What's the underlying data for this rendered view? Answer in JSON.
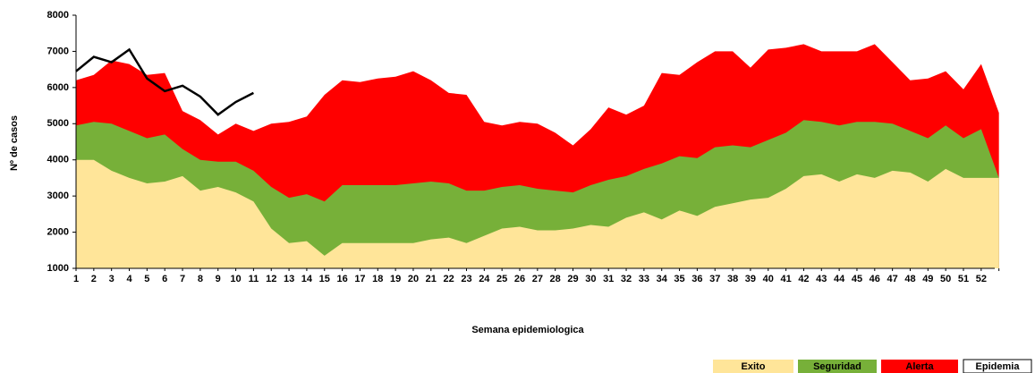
{
  "chart_data": {
    "type": "area",
    "xlabel": "Semana epidemiologica",
    "ylabel": "Nº de casos",
    "categories": [
      1,
      2,
      3,
      4,
      5,
      6,
      7,
      8,
      9,
      10,
      11,
      12,
      13,
      14,
      15,
      16,
      17,
      18,
      19,
      20,
      21,
      22,
      23,
      24,
      25,
      26,
      27,
      28,
      29,
      30,
      31,
      32,
      33,
      34,
      35,
      36,
      37,
      38,
      39,
      40,
      41,
      42,
      43,
      44,
      45,
      46,
      47,
      48,
      49,
      50,
      51,
      52,
      null
    ],
    "ylim": [
      1000,
      8000
    ],
    "yticks": [
      1000,
      2000,
      3000,
      4000,
      5000,
      6000,
      7000,
      8000
    ],
    "grid": false,
    "legend": "bottom-right",
    "series": [
      {
        "name": "Exito",
        "color": "#ffe599",
        "values": [
          4000,
          4000,
          3700,
          3500,
          3350,
          3400,
          3550,
          3150,
          3250,
          3100,
          2850,
          2100,
          1700,
          1750,
          1350,
          1700,
          1700,
          1700,
          1700,
          1700,
          1800,
          1850,
          1700,
          1900,
          2100,
          2150,
          2050,
          2050,
          2100,
          2200,
          2150,
          2400,
          2550,
          2350,
          2600,
          2450,
          2700,
          2800,
          2900,
          2950,
          3200,
          3550,
          3600,
          3400,
          3600,
          3500,
          3700,
          3650,
          3400,
          3750,
          3500,
          3500,
          3500
        ]
      },
      {
        "name": "Seguridad",
        "color": "#77b039",
        "values": [
          4950,
          5050,
          5000,
          4800,
          4600,
          4700,
          4300,
          4000,
          3950,
          3950,
          3700,
          3250,
          2950,
          3050,
          2850,
          3300,
          3300,
          3300,
          3300,
          3350,
          3400,
          3350,
          3150,
          3150,
          3250,
          3300,
          3200,
          3150,
          3100,
          3300,
          3450,
          3550,
          3750,
          3900,
          4100,
          4050,
          4350,
          4400,
          4350,
          4550,
          4750,
          5100,
          5050,
          4950,
          5050,
          5050,
          5000,
          4800,
          4600,
          4950,
          4600,
          4850,
          3500
        ]
      },
      {
        "name": "Alerta",
        "color": "#ff0000",
        "values": [
          6200,
          6350,
          6750,
          6650,
          6350,
          6400,
          5350,
          5100,
          4700,
          5000,
          4800,
          5000,
          5050,
          5200,
          5800,
          6200,
          6150,
          6250,
          6300,
          6450,
          6200,
          5850,
          5800,
          5050,
          4950,
          5050,
          5000,
          4750,
          4400,
          4850,
          5450,
          5250,
          5500,
          6400,
          6350,
          6700,
          7000,
          7000,
          6550,
          7050,
          7100,
          7200,
          7000,
          7000,
          7000,
          7200,
          6700,
          6200,
          6250,
          6450,
          5950,
          6650,
          5300
        ]
      },
      {
        "name": "Epidemia",
        "color": "#000000",
        "line": true,
        "values": [
          6450,
          6850,
          6700,
          7050,
          6250,
          5900,
          6050,
          5750,
          5250,
          5600,
          5850,
          null,
          null,
          null,
          null,
          null,
          null,
          null,
          null,
          null,
          null,
          null,
          null,
          null,
          null,
          null,
          null,
          null,
          null,
          null,
          null,
          null,
          null,
          null,
          null,
          null,
          null,
          null,
          null,
          null,
          null,
          null,
          null,
          null,
          null,
          null,
          null,
          null,
          null,
          null,
          null,
          null,
          null
        ]
      }
    ]
  }
}
